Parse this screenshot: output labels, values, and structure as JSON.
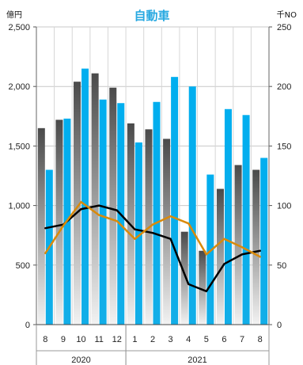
{
  "chart_data": {
    "type": "bar",
    "title": "自動車",
    "left_unit": "億円",
    "right_unit": "千NO",
    "y_left_lim": [
      0,
      2500
    ],
    "y_right_lim": [
      0,
      250
    ],
    "y_left_ticks": [
      "0",
      "500",
      "1,000",
      "1,500",
      "2,000",
      "2,500"
    ],
    "y_right_ticks": [
      "0",
      "50",
      "100",
      "150",
      "200",
      "250"
    ],
    "categories": [
      "8",
      "9",
      "10",
      "11",
      "12",
      "1",
      "2",
      "3",
      "4",
      "5",
      "6",
      "7",
      "8"
    ],
    "years": [
      {
        "label": "2020",
        "start": 0,
        "count": 5
      },
      {
        "label": "2021",
        "start": 5,
        "count": 8
      }
    ],
    "grid": true,
    "series": [
      {
        "kind": "bar",
        "axis": "left",
        "color": "#555555",
        "values": [
          1650,
          1720,
          2040,
          2110,
          1990,
          1690,
          1640,
          1560,
          780,
          620,
          1140,
          1340,
          1300
        ]
      },
      {
        "kind": "bar",
        "axis": "left",
        "color": "#00aeef",
        "values": [
          1300,
          1730,
          2150,
          1890,
          1860,
          1530,
          1870,
          2080,
          2000,
          1260,
          1810,
          1760,
          1400
        ]
      },
      {
        "kind": "line",
        "axis": "left",
        "color": "#000000",
        "values": [
          810,
          840,
          970,
          1000,
          960,
          800,
          770,
          720,
          340,
          280,
          510,
          590,
          620
        ]
      },
      {
        "kind": "line",
        "axis": "left",
        "color": "#d98a0b",
        "values": [
          600,
          830,
          1030,
          920,
          870,
          720,
          840,
          910,
          850,
          590,
          720,
          650,
          570
        ]
      }
    ]
  }
}
